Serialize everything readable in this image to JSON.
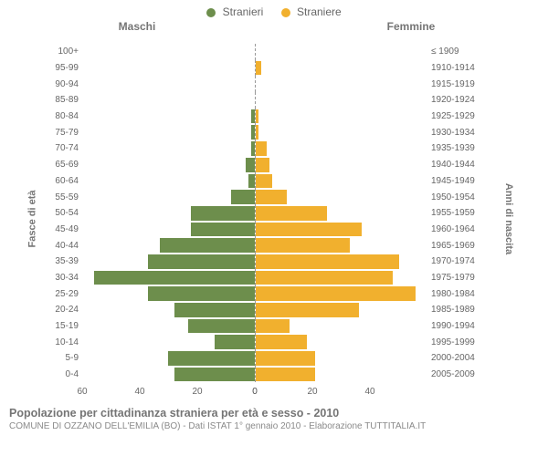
{
  "legend": {
    "male": "Stranieri",
    "female": "Straniere",
    "male_color": "#6d8e4c",
    "female_color": "#f1b02e"
  },
  "chart": {
    "type": "population-pyramid",
    "title_left": "Maschi",
    "title_right": "Femmine",
    "y_label_left": "Fasce di età",
    "y_label_right": "Anni di nascita",
    "max_value": 60,
    "x_ticks_left": [
      60,
      40,
      20,
      0
    ],
    "x_ticks_right": [
      0,
      20,
      40
    ],
    "background_color": "#ffffff",
    "grid_color": "#e5e5e5",
    "axis_color": "#666666",
    "rows": [
      {
        "age": "100+",
        "birth": "≤ 1909",
        "m": 0,
        "f": 0
      },
      {
        "age": "95-99",
        "birth": "1910-1914",
        "m": 0,
        "f": 2
      },
      {
        "age": "90-94",
        "birth": "1915-1919",
        "m": 0,
        "f": 0
      },
      {
        "age": "85-89",
        "birth": "1920-1924",
        "m": 0,
        "f": 0
      },
      {
        "age": "80-84",
        "birth": "1925-1929",
        "m": 1,
        "f": 1
      },
      {
        "age": "75-79",
        "birth": "1930-1934",
        "m": 1,
        "f": 1
      },
      {
        "age": "70-74",
        "birth": "1935-1939",
        "m": 1,
        "f": 4
      },
      {
        "age": "65-69",
        "birth": "1940-1944",
        "m": 3,
        "f": 5
      },
      {
        "age": "60-64",
        "birth": "1945-1949",
        "m": 2,
        "f": 6
      },
      {
        "age": "55-59",
        "birth": "1950-1954",
        "m": 8,
        "f": 11
      },
      {
        "age": "50-54",
        "birth": "1955-1959",
        "m": 22,
        "f": 25
      },
      {
        "age": "45-49",
        "birth": "1960-1964",
        "m": 22,
        "f": 37
      },
      {
        "age": "40-44",
        "birth": "1965-1969",
        "m": 33,
        "f": 33
      },
      {
        "age": "35-39",
        "birth": "1970-1974",
        "m": 37,
        "f": 50
      },
      {
        "age": "30-34",
        "birth": "1975-1979",
        "m": 56,
        "f": 48
      },
      {
        "age": "25-29",
        "birth": "1980-1984",
        "m": 37,
        "f": 56
      },
      {
        "age": "20-24",
        "birth": "1985-1989",
        "m": 28,
        "f": 36
      },
      {
        "age": "15-19",
        "birth": "1990-1994",
        "m": 23,
        "f": 12
      },
      {
        "age": "10-14",
        "birth": "1995-1999",
        "m": 14,
        "f": 18
      },
      {
        "age": "5-9",
        "birth": "2000-2004",
        "m": 30,
        "f": 21
      },
      {
        "age": "0-4",
        "birth": "2005-2009",
        "m": 28,
        "f": 21
      }
    ]
  },
  "footer": {
    "title": "Popolazione per cittadinanza straniera per età e sesso - 2010",
    "subtitle": "COMUNE DI OZZANO DELL'EMILIA (BO) - Dati ISTAT 1° gennaio 2010 - Elaborazione TUTTITALIA.IT"
  }
}
